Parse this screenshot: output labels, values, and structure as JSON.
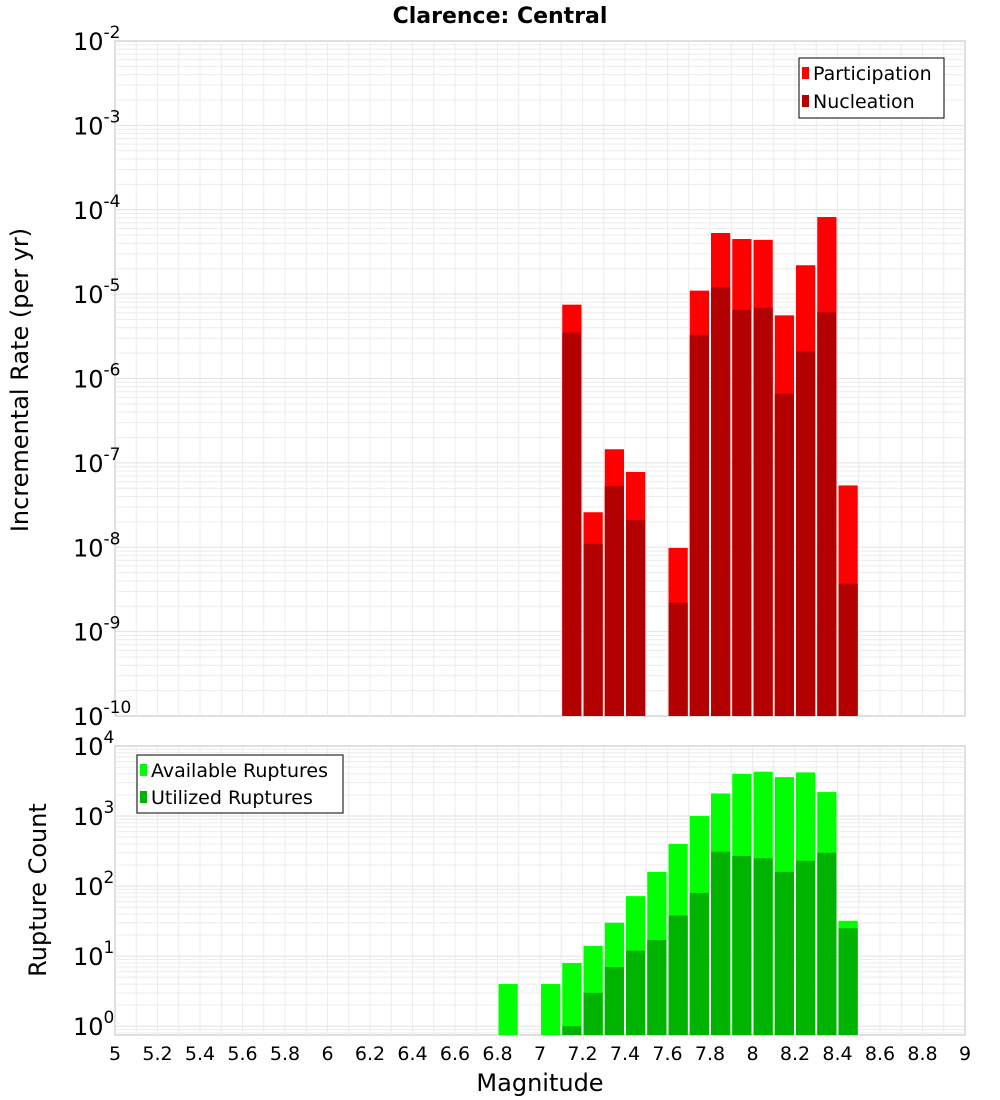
{
  "figure": {
    "title": "Clarence: Central",
    "xlabel": "Magnitude",
    "x_ticks": [
      "5",
      "5.2",
      "5.4",
      "5.6",
      "5.8",
      "6",
      "6.2",
      "6.4",
      "6.6",
      "6.8",
      "7",
      "7.2",
      "7.4",
      "7.6",
      "7.8",
      "8",
      "8.2",
      "8.4",
      "8.6",
      "8.8",
      "9"
    ]
  },
  "colors": {
    "participation": "#ff0000",
    "nucleation": "#b30000",
    "available": "#00ff00",
    "utilized": "#00b300",
    "grid": "#ececec",
    "frame": "#bfbfbf"
  },
  "chart_data": [
    {
      "type": "bar",
      "title": "Clarence: Central",
      "ylabel": "Incremental Rate (per yr)",
      "xlabel": "Magnitude",
      "y_scale": "log",
      "xlim": [
        5,
        9
      ],
      "ylim": [
        1e-10,
        0.01
      ],
      "y_ticks": [
        "10^-10",
        "10^-9",
        "10^-8",
        "10^-7",
        "10^-6",
        "10^-5",
        "10^-4",
        "10^-3",
        "10^-2"
      ],
      "grid": true,
      "legend_position": "top-right",
      "x": [
        7.15,
        7.25,
        7.35,
        7.45,
        7.65,
        7.75,
        7.85,
        7.95,
        8.05,
        8.15,
        8.25,
        8.35,
        8.45
      ],
      "series": [
        {
          "name": "Participation",
          "color": "#ff0000",
          "values": [
            7.5e-06,
            2.6e-08,
            1.45e-07,
            7.8e-08,
            9.8e-09,
            1.1e-05,
            5.3e-05,
            4.5e-05,
            4.4e-05,
            5.6e-06,
            2.2e-05,
            8.2e-05,
            5.4e-08
          ]
        },
        {
          "name": "Nucleation",
          "color": "#b30000",
          "values": [
            3.5e-06,
            1.1e-08,
            5.3e-08,
            2.1e-08,
            2.2e-09,
            3.3e-06,
            1.2e-05,
            6.5e-06,
            6.9e-06,
            6.6e-07,
            2.1e-06,
            6.1e-06,
            3.7e-09
          ]
        }
      ]
    },
    {
      "type": "bar",
      "ylabel": "Rupture Count",
      "xlabel": "Magnitude",
      "y_scale": "log",
      "xlim": [
        5,
        9
      ],
      "ylim": [
        0.75,
        10000
      ],
      "y_ticks": [
        "10^0",
        "10^1",
        "10^2",
        "10^3",
        "10^4"
      ],
      "grid": true,
      "legend_position": "top-left",
      "x": [
        6.85,
        7.05,
        7.15,
        7.25,
        7.35,
        7.45,
        7.55,
        7.65,
        7.75,
        7.85,
        7.95,
        8.05,
        8.15,
        8.25,
        8.35,
        8.45
      ],
      "series": [
        {
          "name": "Available Ruptures",
          "color": "#00ff00",
          "values": [
            4,
            4,
            8,
            14,
            30,
            72,
            160,
            400,
            1000,
            2100,
            4000,
            4300,
            3600,
            4200,
            2200,
            32
          ]
        },
        {
          "name": "Utilized Ruptures",
          "color": "#00b300",
          "values": [
            0,
            0,
            1,
            3,
            7,
            12,
            17,
            38,
            80,
            310,
            270,
            250,
            160,
            230,
            300,
            25
          ]
        }
      ]
    }
  ]
}
